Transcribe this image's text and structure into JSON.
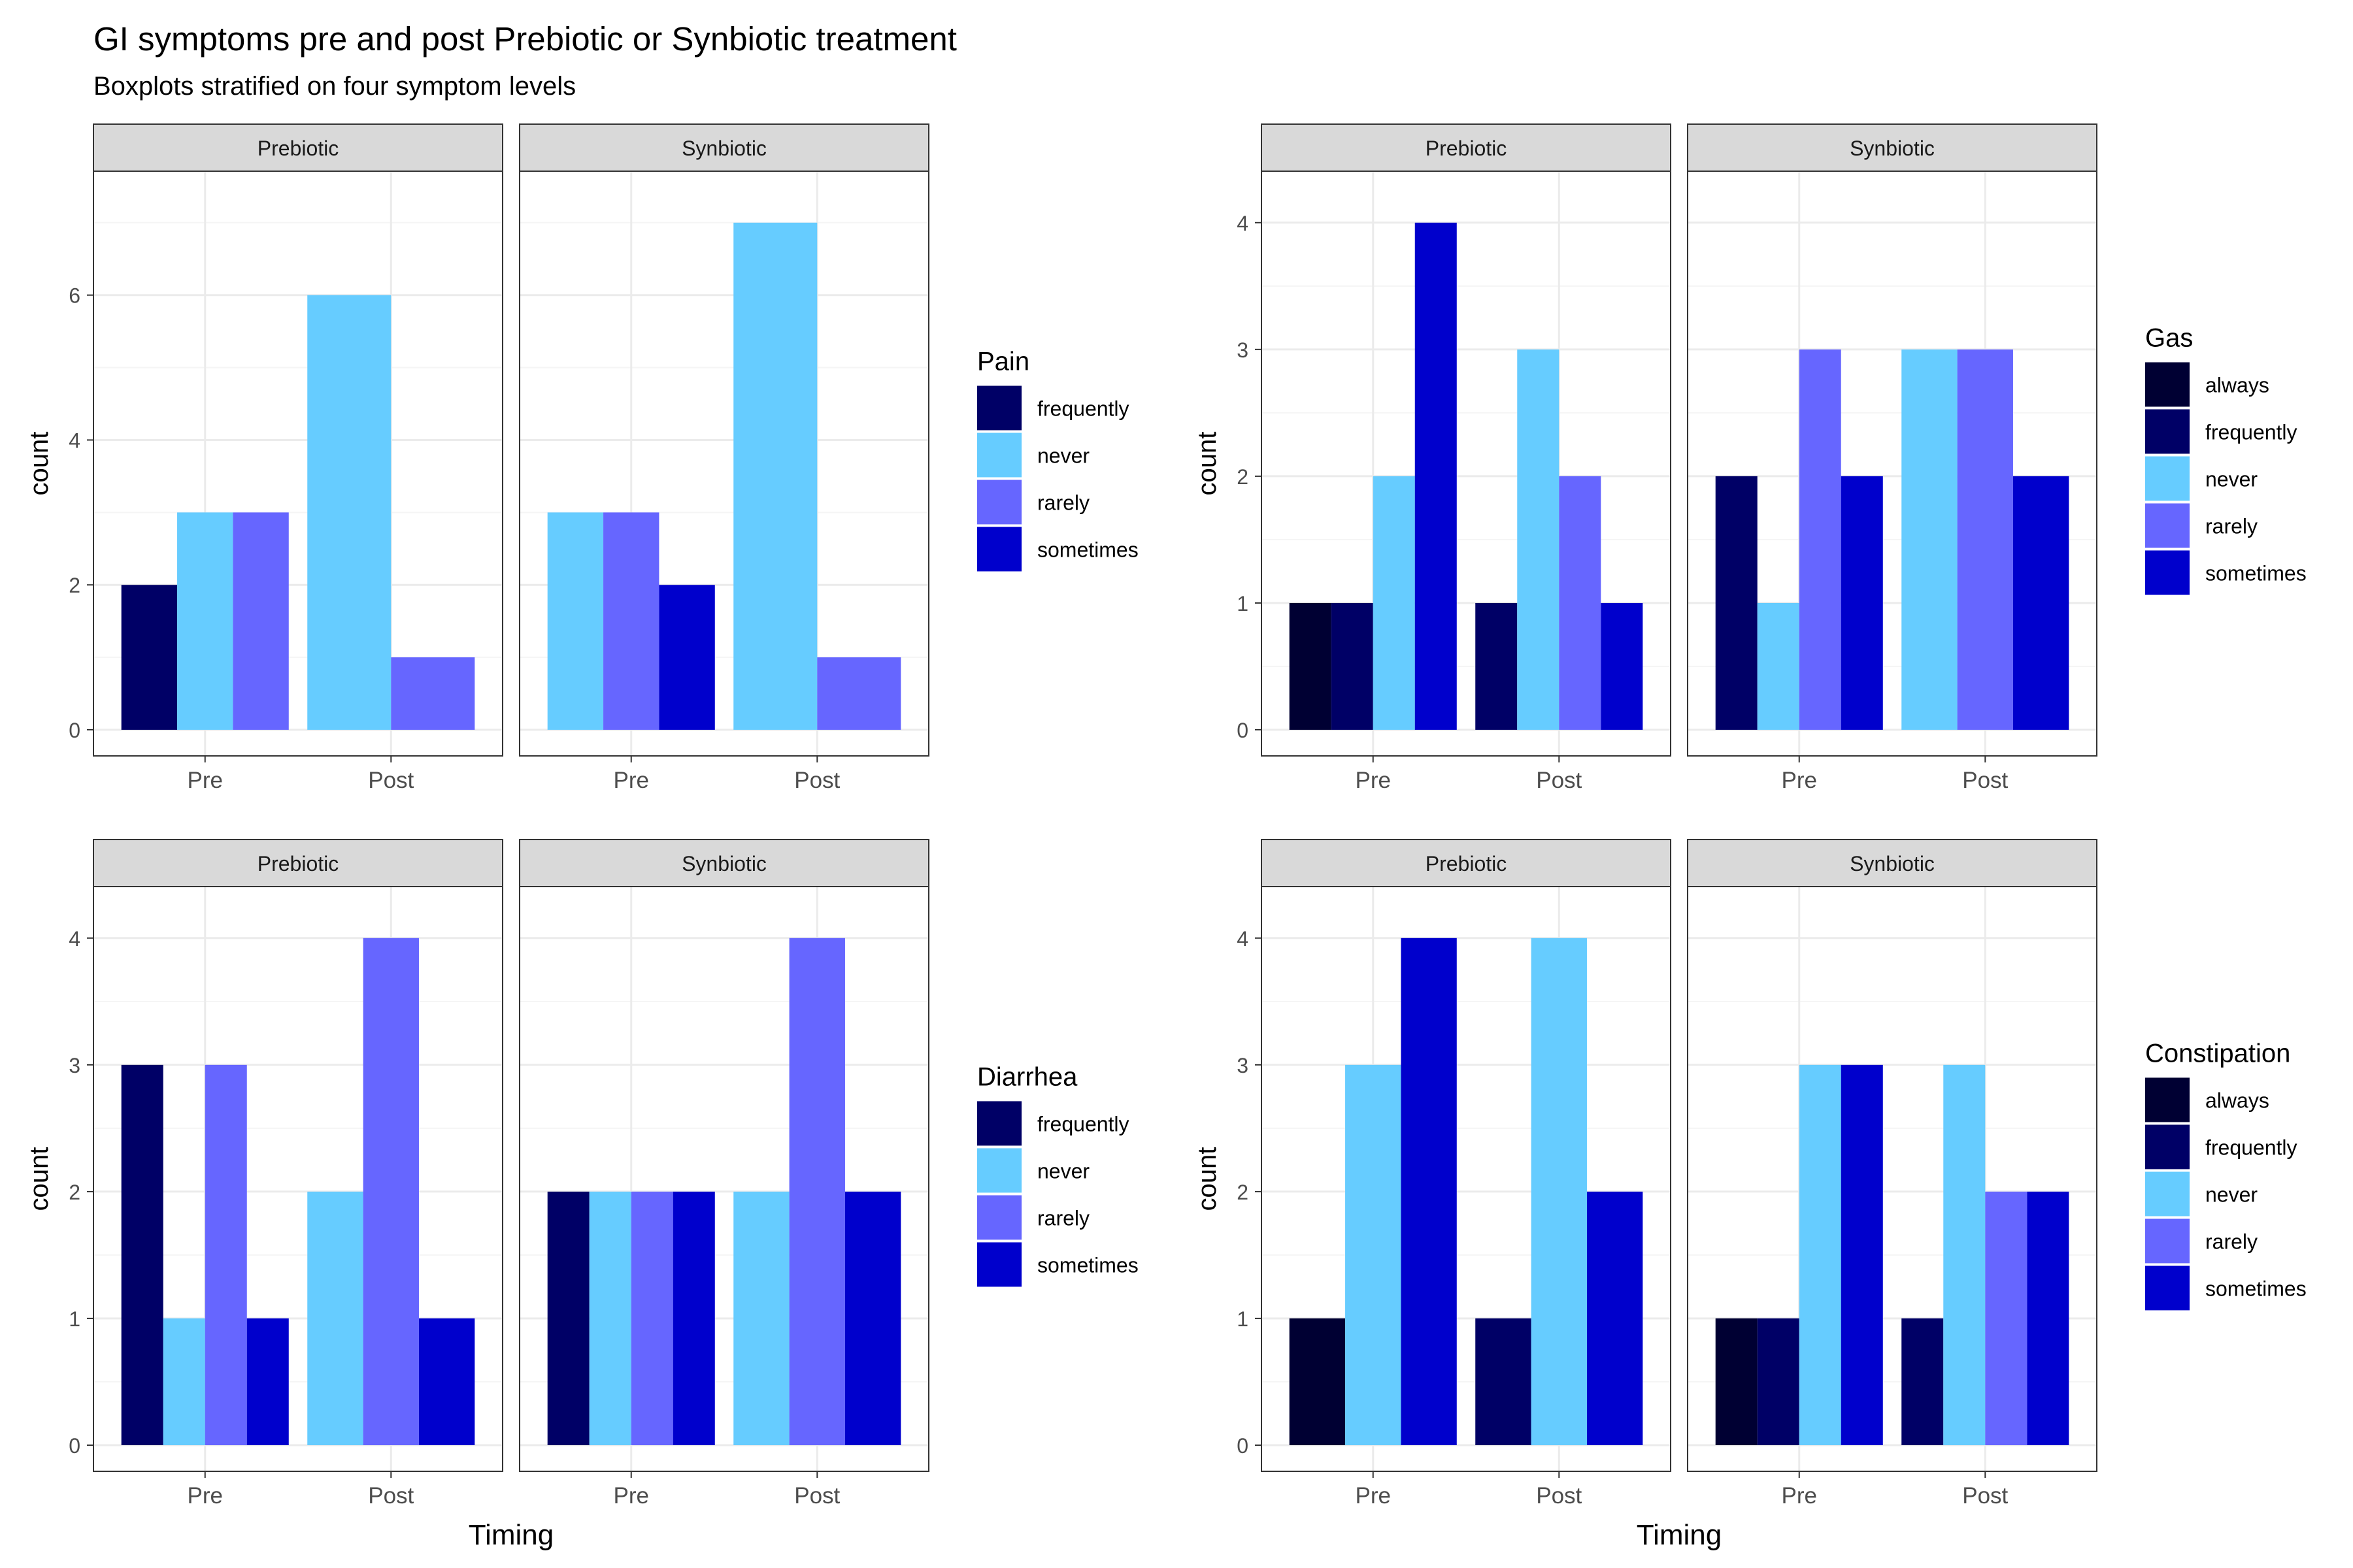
{
  "title": "GI symptoms pre and post Prebiotic or Synbiotic treatment",
  "subtitle": "Boxplots stratified on four symptom levels",
  "colors": {
    "always": "#000033",
    "frequently": "#000066",
    "never": "#66CCFF",
    "rarely": "#6666FF",
    "sometimes": "#0000CC",
    "strip_fill": "#D9D9D9",
    "grid_major": "#EBEBEB",
    "grid_minor": "#F5F5F5",
    "panel_border": "#333333",
    "tick_text": "#4D4D4D"
  },
  "chart_data": [
    {
      "type": "bar",
      "legend_title": "Pain",
      "levels": [
        "frequently",
        "never",
        "rarely",
        "sometimes"
      ],
      "facets": [
        "Prebiotic",
        "Synbiotic"
      ],
      "categories": [
        "Pre",
        "Post"
      ],
      "xlabel": "",
      "ylabel": "count",
      "ylim": [
        0,
        7.35
      ],
      "yticks": [
        0,
        2,
        4,
        6
      ],
      "panels": [
        {
          "facet": "Prebiotic",
          "groups": [
            {
              "x": "Pre",
              "bars": [
                {
                  "level": "frequently",
                  "value": 2
                },
                {
                  "level": "never",
                  "value": 3
                },
                {
                  "level": "rarely",
                  "value": 3
                }
              ]
            },
            {
              "x": "Post",
              "bars": [
                {
                  "level": "never",
                  "value": 6
                },
                {
                  "level": "rarely",
                  "value": 1
                }
              ]
            }
          ]
        },
        {
          "facet": "Synbiotic",
          "groups": [
            {
              "x": "Pre",
              "bars": [
                {
                  "level": "never",
                  "value": 3
                },
                {
                  "level": "rarely",
                  "value": 3
                },
                {
                  "level": "sometimes",
                  "value": 2
                }
              ]
            },
            {
              "x": "Post",
              "bars": [
                {
                  "level": "never",
                  "value": 7
                },
                {
                  "level": "rarely",
                  "value": 1
                }
              ]
            }
          ]
        }
      ]
    },
    {
      "type": "bar",
      "legend_title": "Gas",
      "levels": [
        "always",
        "frequently",
        "never",
        "rarely",
        "sometimes"
      ],
      "facets": [
        "Prebiotic",
        "Synbiotic"
      ],
      "categories": [
        "Pre",
        "Post"
      ],
      "xlabel": "",
      "ylabel": "count",
      "ylim": [
        0,
        4.2
      ],
      "yticks": [
        0,
        1,
        2,
        3,
        4
      ],
      "panels": [
        {
          "facet": "Prebiotic",
          "groups": [
            {
              "x": "Pre",
              "bars": [
                {
                  "level": "always",
                  "value": 1
                },
                {
                  "level": "frequently",
                  "value": 1
                },
                {
                  "level": "never",
                  "value": 2
                },
                {
                  "level": "sometimes",
                  "value": 4
                }
              ]
            },
            {
              "x": "Post",
              "bars": [
                {
                  "level": "frequently",
                  "value": 1
                },
                {
                  "level": "never",
                  "value": 3
                },
                {
                  "level": "rarely",
                  "value": 2
                },
                {
                  "level": "sometimes",
                  "value": 1
                }
              ]
            }
          ]
        },
        {
          "facet": "Synbiotic",
          "groups": [
            {
              "x": "Pre",
              "bars": [
                {
                  "level": "frequently",
                  "value": 2
                },
                {
                  "level": "never",
                  "value": 1
                },
                {
                  "level": "rarely",
                  "value": 3
                },
                {
                  "level": "sometimes",
                  "value": 2
                }
              ]
            },
            {
              "x": "Post",
              "bars": [
                {
                  "level": "never",
                  "value": 3
                },
                {
                  "level": "rarely",
                  "value": 3
                },
                {
                  "level": "sometimes",
                  "value": 2
                }
              ]
            }
          ]
        }
      ]
    },
    {
      "type": "bar",
      "legend_title": "Diarrhea",
      "levels": [
        "frequently",
        "never",
        "rarely",
        "sometimes"
      ],
      "facets": [
        "Prebiotic",
        "Synbiotic"
      ],
      "categories": [
        "Pre",
        "Post"
      ],
      "xlabel": "Timing",
      "ylabel": "count",
      "ylim": [
        0,
        4.2
      ],
      "yticks": [
        0,
        1,
        2,
        3,
        4
      ],
      "panels": [
        {
          "facet": "Prebiotic",
          "groups": [
            {
              "x": "Pre",
              "bars": [
                {
                  "level": "frequently",
                  "value": 3
                },
                {
                  "level": "never",
                  "value": 1
                },
                {
                  "level": "rarely",
                  "value": 3
                },
                {
                  "level": "sometimes",
                  "value": 1
                }
              ]
            },
            {
              "x": "Post",
              "bars": [
                {
                  "level": "never",
                  "value": 2
                },
                {
                  "level": "rarely",
                  "value": 4
                },
                {
                  "level": "sometimes",
                  "value": 1
                }
              ]
            }
          ]
        },
        {
          "facet": "Synbiotic",
          "groups": [
            {
              "x": "Pre",
              "bars": [
                {
                  "level": "frequently",
                  "value": 2
                },
                {
                  "level": "never",
                  "value": 2
                },
                {
                  "level": "rarely",
                  "value": 2
                },
                {
                  "level": "sometimes",
                  "value": 2
                }
              ]
            },
            {
              "x": "Post",
              "bars": [
                {
                  "level": "never",
                  "value": 2
                },
                {
                  "level": "rarely",
                  "value": 4
                },
                {
                  "level": "sometimes",
                  "value": 2
                }
              ]
            }
          ]
        }
      ]
    },
    {
      "type": "bar",
      "legend_title": "Constipation",
      "levels": [
        "always",
        "frequently",
        "never",
        "rarely",
        "sometimes"
      ],
      "facets": [
        "Prebiotic",
        "Synbiotic"
      ],
      "categories": [
        "Pre",
        "Post"
      ],
      "xlabel": "Timing",
      "ylabel": "count",
      "ylim": [
        0,
        4.2
      ],
      "yticks": [
        0,
        1,
        2,
        3,
        4
      ],
      "panels": [
        {
          "facet": "Prebiotic",
          "groups": [
            {
              "x": "Pre",
              "bars": [
                {
                  "level": "always",
                  "value": 1
                },
                {
                  "level": "never",
                  "value": 3
                },
                {
                  "level": "sometimes",
                  "value": 4
                }
              ]
            },
            {
              "x": "Post",
              "bars": [
                {
                  "level": "frequently",
                  "value": 1
                },
                {
                  "level": "never",
                  "value": 4
                },
                {
                  "level": "sometimes",
                  "value": 2
                }
              ]
            }
          ]
        },
        {
          "facet": "Synbiotic",
          "groups": [
            {
              "x": "Pre",
              "bars": [
                {
                  "level": "always",
                  "value": 1
                },
                {
                  "level": "frequently",
                  "value": 1
                },
                {
                  "level": "never",
                  "value": 3
                },
                {
                  "level": "sometimes",
                  "value": 3
                }
              ]
            },
            {
              "x": "Post",
              "bars": [
                {
                  "level": "frequently",
                  "value": 1
                },
                {
                  "level": "never",
                  "value": 3
                },
                {
                  "level": "rarely",
                  "value": 2
                },
                {
                  "level": "sometimes",
                  "value": 2
                }
              ]
            }
          ]
        }
      ]
    }
  ]
}
